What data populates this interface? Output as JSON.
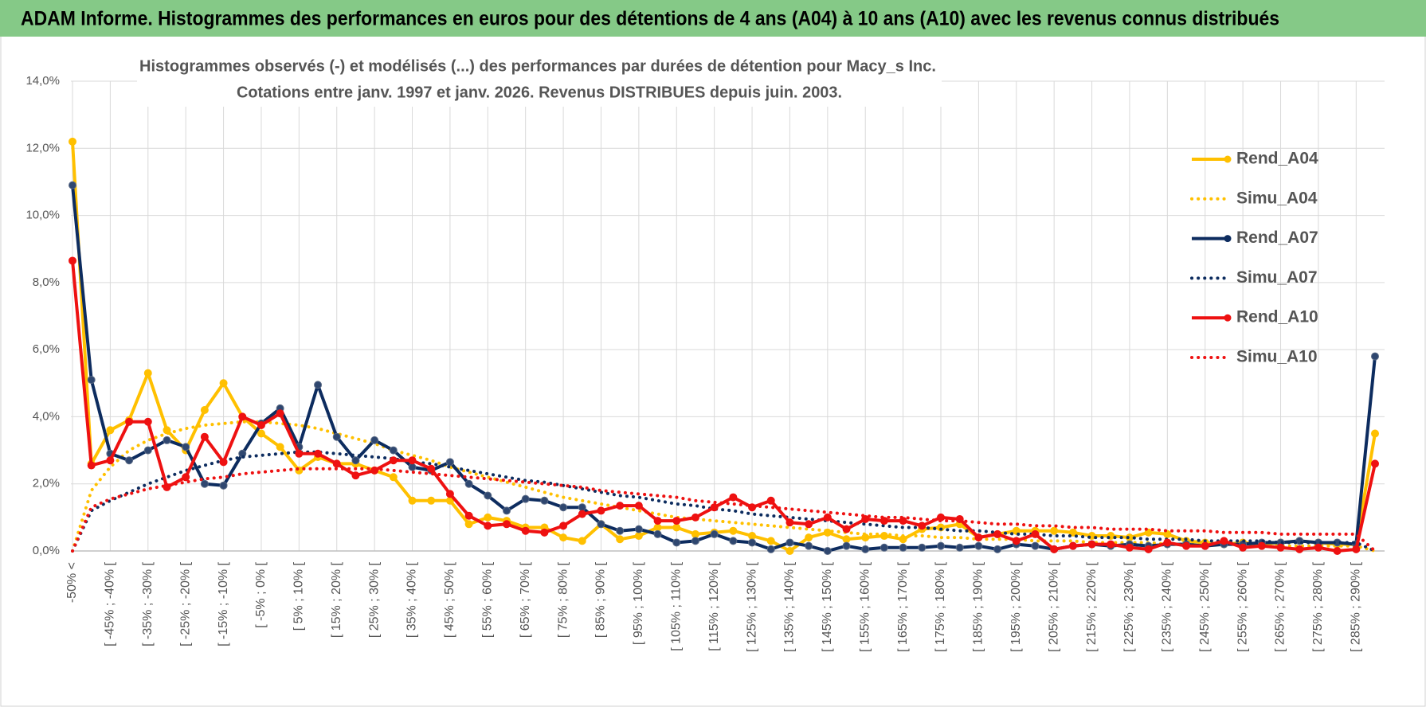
{
  "chart_data": {
    "type": "line",
    "title": "ADAM Informe. Histogrammes des performances en euros pour des détentions de 4 ans (A04) à 10 ans (A10) avec les revenus connus distribués",
    "subtitle": [
      "Histogrammes observés (-) et modélisés (...) des performances par durées de détention pour Macy_s Inc.",
      "Cotations entre janv. 1997 et janv. 2026. Revenus DISTRIBUES depuis juin. 2003."
    ],
    "categories": [
      "-50% <",
      null,
      "[ -45% ; -40% [",
      null,
      "[ -35% ; -30% [",
      null,
      "[ -25% ; -20% [",
      null,
      "[ -15% ; -10% [",
      null,
      "[ -5% ; 0% [",
      null,
      "[ 5% ; 10% [",
      null,
      "[ 15% ; 20% [",
      null,
      "[ 25% ; 30% [",
      null,
      "[ 35% ; 40% [",
      null,
      "[ 45% ; 50% [",
      null,
      "[ 55% ; 60% [",
      null,
      "[ 65% ; 70% [",
      null,
      "[ 75% ; 80% [",
      null,
      "[ 85% ; 90% [",
      null,
      "[ 95% ; 100% [",
      null,
      "[ 105% ; 110% [",
      null,
      "[ 115% ; 120% [",
      null,
      "[ 125% ; 130% [",
      null,
      "[ 135% ; 140% [",
      null,
      "[ 145% ; 150% [",
      null,
      "[ 155% ; 160% [",
      null,
      "[ 165% ; 170% [",
      null,
      "[ 175% ; 180% [",
      null,
      "[ 185% ; 190% [",
      null,
      "[ 195% ; 200% [",
      null,
      "[ 205% ; 210% [",
      null,
      "[ 215% ; 220% [",
      null,
      "[ 225% ; 230% [",
      null,
      "[ 235% ; 240% [",
      null,
      "[ 245% ; 250% [",
      null,
      "[ 255% ; 260% [",
      null,
      "[ 265% ; 270% [",
      null,
      "[ 275% ; 280% [",
      null,
      "[ 285% ; 290% [",
      null
    ],
    "ylim": [
      0,
      14
    ],
    "yticks": [
      {
        "value": 0,
        "label": "0,0%"
      },
      {
        "value": 2,
        "label": "2,0%"
      },
      {
        "value": 4,
        "label": "4,0%"
      },
      {
        "value": 6,
        "label": "6,0%"
      },
      {
        "value": 8,
        "label": "8,0%"
      },
      {
        "value": 10,
        "label": "10,0%"
      },
      {
        "value": 12,
        "label": "12,0%"
      },
      {
        "value": 14,
        "label": "14,0%"
      }
    ],
    "grid": true,
    "legend": "right",
    "series": [
      {
        "name": "Rend_A04",
        "color": "#ffc000",
        "line_style": "solid",
        "markers": true,
        "values": [
          12.2,
          2.6,
          3.6,
          3.9,
          5.3,
          3.6,
          3.0,
          4.2,
          5.0,
          4.0,
          3.5,
          3.1,
          2.4,
          2.8,
          2.6,
          2.6,
          2.4,
          2.2,
          1.5,
          1.5,
          1.5,
          0.8,
          1.0,
          0.9,
          0.7,
          0.7,
          0.4,
          0.3,
          0.8,
          0.35,
          0.45,
          0.7,
          0.7,
          0.5,
          0.55,
          0.6,
          0.45,
          0.3,
          0.0,
          0.4,
          0.55,
          0.35,
          0.4,
          0.45,
          0.35,
          0.65,
          0.7,
          0.8,
          0.4,
          0.5,
          0.6,
          0.6,
          0.6,
          0.55,
          0.45,
          0.45,
          0.4,
          0.55,
          0.5,
          0.3,
          0.25,
          0.2,
          0.25,
          0.2,
          0.25,
          0.3,
          0.25,
          0.2,
          0.2,
          3.5
        ]
      },
      {
        "name": "Simu_A04",
        "color": "#ffc000",
        "line_style": "dotted",
        "markers": false,
        "values": [
          0,
          1.8,
          2.5,
          3.0,
          3.3,
          3.5,
          3.65,
          3.75,
          3.8,
          3.85,
          3.85,
          3.8,
          3.75,
          3.65,
          3.5,
          3.35,
          3.2,
          3.0,
          2.85,
          2.7,
          2.5,
          2.35,
          2.2,
          2.05,
          1.9,
          1.75,
          1.6,
          1.5,
          1.4,
          1.3,
          1.2,
          1.1,
          1.0,
          0.95,
          0.9,
          0.85,
          0.8,
          0.75,
          0.7,
          0.65,
          0.6,
          0.55,
          0.5,
          0.5,
          0.45,
          0.45,
          0.4,
          0.4,
          0.35,
          0.35,
          0.35,
          0.3,
          0.3,
          0.3,
          0.25,
          0.25,
          0.25,
          0.25,
          0.2,
          0.2,
          0.2,
          0.2,
          0.2,
          0.15,
          0.15,
          0.15,
          0.15,
          0.15,
          0.15,
          0.0
        ]
      },
      {
        "name": "Rend_A07",
        "color": "#0d2c5f",
        "line_style": "solid",
        "markers": true,
        "values": [
          10.9,
          5.1,
          2.9,
          2.7,
          3.0,
          3.3,
          3.1,
          2.0,
          1.95,
          2.9,
          3.8,
          4.25,
          3.1,
          4.95,
          3.4,
          2.7,
          3.3,
          3.0,
          2.5,
          2.4,
          2.65,
          2.0,
          1.65,
          1.2,
          1.55,
          1.5,
          1.3,
          1.3,
          0.8,
          0.6,
          0.65,
          0.5,
          0.25,
          0.3,
          0.5,
          0.3,
          0.25,
          0.05,
          0.25,
          0.15,
          0.0,
          0.15,
          0.05,
          0.1,
          0.1,
          0.1,
          0.15,
          0.1,
          0.15,
          0.05,
          0.2,
          0.15,
          0.05,
          0.15,
          0.2,
          0.15,
          0.2,
          0.15,
          0.2,
          0.2,
          0.15,
          0.2,
          0.2,
          0.25,
          0.25,
          0.3,
          0.25,
          0.25,
          0.2,
          5.8
        ]
      },
      {
        "name": "Simu_A07",
        "color": "#0d2c5f",
        "line_style": "dotted",
        "markers": false,
        "values": [
          0,
          1.2,
          1.5,
          1.75,
          2.0,
          2.2,
          2.4,
          2.55,
          2.7,
          2.8,
          2.85,
          2.9,
          2.95,
          2.95,
          2.9,
          2.85,
          2.8,
          2.75,
          2.65,
          2.6,
          2.5,
          2.4,
          2.3,
          2.2,
          2.1,
          2.05,
          1.95,
          1.85,
          1.75,
          1.65,
          1.6,
          1.5,
          1.4,
          1.35,
          1.25,
          1.2,
          1.1,
          1.05,
          1.0,
          0.95,
          0.9,
          0.85,
          0.8,
          0.75,
          0.7,
          0.7,
          0.65,
          0.6,
          0.6,
          0.55,
          0.5,
          0.5,
          0.45,
          0.45,
          0.4,
          0.4,
          0.4,
          0.35,
          0.35,
          0.35,
          0.3,
          0.3,
          0.3,
          0.3,
          0.25,
          0.25,
          0.25,
          0.25,
          0.25,
          0.0
        ]
      },
      {
        "name": "Rend_A10",
        "color": "#ee1111",
        "line_style": "solid",
        "markers": true,
        "values": [
          8.65,
          2.55,
          2.7,
          3.85,
          3.85,
          1.9,
          2.2,
          3.4,
          2.65,
          4.0,
          3.75,
          4.1,
          2.9,
          2.9,
          2.6,
          2.25,
          2.4,
          2.7,
          2.7,
          2.45,
          1.7,
          1.05,
          0.75,
          0.8,
          0.6,
          0.55,
          0.75,
          1.1,
          1.2,
          1.35,
          1.35,
          0.9,
          0.9,
          1.0,
          1.3,
          1.6,
          1.3,
          1.5,
          0.85,
          0.8,
          1.0,
          0.65,
          0.95,
          0.9,
          0.9,
          0.75,
          1.0,
          0.95,
          0.4,
          0.5,
          0.3,
          0.5,
          0.05,
          0.15,
          0.2,
          0.2,
          0.1,
          0.05,
          0.25,
          0.15,
          0.15,
          0.3,
          0.1,
          0.15,
          0.1,
          0.05,
          0.1,
          0.0,
          0.05,
          2.6
        ]
      },
      {
        "name": "Simu_A10",
        "color": "#ee1111",
        "line_style": "dotted",
        "markers": false,
        "values": [
          0,
          1.3,
          1.55,
          1.7,
          1.85,
          1.95,
          2.05,
          2.15,
          2.2,
          2.3,
          2.35,
          2.4,
          2.45,
          2.45,
          2.45,
          2.45,
          2.45,
          2.4,
          2.35,
          2.3,
          2.25,
          2.2,
          2.15,
          2.1,
          2.05,
          2.0,
          1.95,
          1.9,
          1.8,
          1.75,
          1.7,
          1.65,
          1.6,
          1.5,
          1.45,
          1.4,
          1.35,
          1.3,
          1.25,
          1.2,
          1.15,
          1.1,
          1.05,
          1.0,
          1.0,
          0.95,
          0.9,
          0.9,
          0.85,
          0.8,
          0.8,
          0.75,
          0.75,
          0.7,
          0.7,
          0.65,
          0.65,
          0.65,
          0.6,
          0.6,
          0.6,
          0.55,
          0.55,
          0.55,
          0.5,
          0.5,
          0.5,
          0.5,
          0.5,
          0.0
        ]
      }
    ]
  }
}
